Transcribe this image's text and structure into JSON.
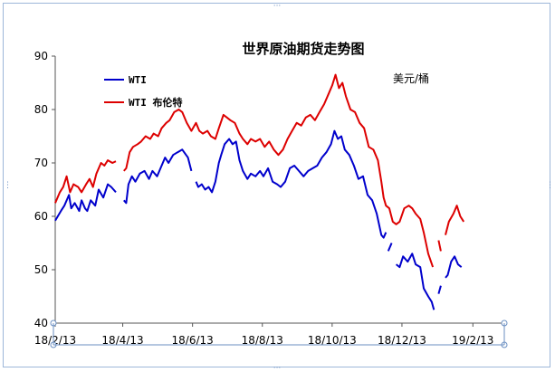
{
  "chart_data": {
    "type": "line",
    "title": "世界原油期货走势图",
    "unit_label": "美元/桶",
    "ylim": [
      40,
      90
    ],
    "y_ticks": [
      "40",
      "50",
      "60",
      "70",
      "80",
      "90"
    ],
    "x_range": [
      "2018-02-01",
      "2019-02-15"
    ],
    "x_ticks": [
      {
        "date": "2018-02-01",
        "label": "18/2/13"
      },
      {
        "date": "2018-04-01",
        "label": "18/4/13"
      },
      {
        "date": "2018-06-01",
        "label": "18/6/13"
      },
      {
        "date": "2018-08-01",
        "label": "18/8/13"
      },
      {
        "date": "2018-10-01",
        "label": "18/10/13"
      },
      {
        "date": "2018-12-01",
        "label": "18/12/13"
      },
      {
        "date": "2019-02-01",
        "label": "19/2/13"
      }
    ],
    "legend_position": "top-left",
    "grid": false,
    "series": [
      {
        "name": "WTI",
        "color": "#0000cc",
        "segments": [
          [
            [
              "2018-02-01",
              59.2
            ],
            [
              "2018-02-06",
              61.0
            ],
            [
              "2018-02-09",
              62.0
            ],
            [
              "2018-02-13",
              64.0
            ],
            [
              "2018-02-15",
              61.5
            ],
            [
              "2018-02-18",
              62.5
            ],
            [
              "2018-02-22",
              61.0
            ],
            [
              "2018-02-24",
              63.0
            ],
            [
              "2018-02-27",
              61.5
            ],
            [
              "2018-03-01",
              61.0
            ],
            [
              "2018-03-04",
              63.0
            ],
            [
              "2018-03-08",
              62.0
            ],
            [
              "2018-03-11",
              65.0
            ],
            [
              "2018-03-15",
              63.5
            ],
            [
              "2018-03-19",
              66.0
            ],
            [
              "2018-03-22",
              65.5
            ],
            [
              "2018-03-26",
              64.5
            ]
          ],
          [
            [
              "2018-04-02",
              63.0
            ],
            [
              "2018-04-04",
              62.5
            ],
            [
              "2018-04-06",
              66.0
            ],
            [
              "2018-04-09",
              67.5
            ],
            [
              "2018-04-12",
              66.5
            ],
            [
              "2018-04-16",
              68.0
            ],
            [
              "2018-04-20",
              68.5
            ],
            [
              "2018-04-24",
              67.0
            ],
            [
              "2018-04-27",
              68.5
            ],
            [
              "2018-05-01",
              67.5
            ],
            [
              "2018-05-04",
              69.0
            ],
            [
              "2018-05-08",
              71.0
            ],
            [
              "2018-05-11",
              70.0
            ],
            [
              "2018-05-15",
              71.5
            ],
            [
              "2018-05-19",
              72.0
            ],
            [
              "2018-05-23",
              72.5
            ],
            [
              "2018-05-28",
              71.0
            ],
            [
              "2018-05-31",
              68.5
            ]
          ],
          [
            [
              "2018-06-04",
              66.5
            ],
            [
              "2018-06-06",
              65.5
            ],
            [
              "2018-06-09",
              66.0
            ],
            [
              "2018-06-12",
              65.0
            ],
            [
              "2018-06-15",
              65.5
            ],
            [
              "2018-06-18",
              64.5
            ],
            [
              "2018-06-21",
              66.5
            ],
            [
              "2018-06-24",
              70.0
            ],
            [
              "2018-06-26",
              71.5
            ],
            [
              "2018-06-29",
              73.5
            ],
            [
              "2018-07-03",
              74.5
            ],
            [
              "2018-07-06",
              73.5
            ],
            [
              "2018-07-09",
              74.0
            ],
            [
              "2018-07-12",
              70.5
            ],
            [
              "2018-07-15",
              68.5
            ],
            [
              "2018-07-19",
              67.0
            ],
            [
              "2018-07-22",
              68.0
            ],
            [
              "2018-07-26",
              67.5
            ],
            [
              "2018-07-30",
              68.5
            ],
            [
              "2018-08-02",
              67.5
            ],
            [
              "2018-08-06",
              69.0
            ],
            [
              "2018-08-10",
              66.5
            ],
            [
              "2018-08-14",
              66.0
            ],
            [
              "2018-08-17",
              65.5
            ],
            [
              "2018-08-21",
              66.5
            ],
            [
              "2018-08-25",
              69.0
            ],
            [
              "2018-08-29",
              69.5
            ],
            [
              "2018-09-02",
              68.5
            ],
            [
              "2018-09-06",
              67.5
            ],
            [
              "2018-09-10",
              68.5
            ],
            [
              "2018-09-14",
              69.0
            ],
            [
              "2018-09-18",
              69.5
            ],
            [
              "2018-09-22",
              71.0
            ],
            [
              "2018-09-26",
              72.0
            ],
            [
              "2018-09-30",
              73.5
            ],
            [
              "2018-10-03",
              76.0
            ],
            [
              "2018-10-06",
              74.5
            ],
            [
              "2018-10-09",
              75.0
            ],
            [
              "2018-10-12",
              72.5
            ],
            [
              "2018-10-16",
              71.5
            ],
            [
              "2018-10-20",
              69.5
            ],
            [
              "2018-10-24",
              67.0
            ],
            [
              "2018-10-28",
              67.5
            ],
            [
              "2018-11-01",
              64.0
            ],
            [
              "2018-11-05",
              63.0
            ],
            [
              "2018-11-09",
              60.5
            ],
            [
              "2018-11-13",
              56.5
            ],
            [
              "2018-11-15",
              56.0
            ],
            [
              "2018-11-17",
              57.0
            ]
          ],
          [
            [
              "2018-11-19",
              53.5
            ],
            [
              "2018-11-22",
              55.0
            ]
          ],
          [
            [
              "2018-11-26",
              51.0
            ],
            [
              "2018-11-29",
              50.5
            ],
            [
              "2018-12-02",
              52.5
            ],
            [
              "2018-12-06",
              51.5
            ],
            [
              "2018-12-10",
              53.0
            ],
            [
              "2018-12-13",
              51.0
            ],
            [
              "2018-12-17",
              50.5
            ],
            [
              "2018-12-20",
              46.5
            ],
            [
              "2018-12-24",
              45.0
            ],
            [
              "2018-12-27",
              44.0
            ],
            [
              "2018-12-29",
              42.5
            ]
          ],
          [
            [
              "2019-01-02",
              45.5
            ],
            [
              "2019-01-04",
              47.0
            ]
          ],
          [
            [
              "2019-01-08",
              48.5
            ],
            [
              "2019-01-10",
              49.0
            ],
            [
              "2019-01-13",
              51.5
            ],
            [
              "2019-01-16",
              52.5
            ],
            [
              "2019-01-19",
              51.0
            ],
            [
              "2019-01-22",
              50.5
            ]
          ]
        ]
      },
      {
        "name": "WTI 布伦特",
        "color": "#dd0000",
        "segments": [
          [
            [
              "2018-02-01",
              62.5
            ],
            [
              "2018-02-05",
              64.5
            ],
            [
              "2018-02-08",
              65.5
            ],
            [
              "2018-02-11",
              67.5
            ],
            [
              "2018-02-14",
              64.5
            ],
            [
              "2018-02-17",
              66.0
            ],
            [
              "2018-02-21",
              65.5
            ],
            [
              "2018-02-24",
              64.5
            ],
            [
              "2018-02-28",
              66.0
            ],
            [
              "2018-03-03",
              67.0
            ],
            [
              "2018-03-06",
              65.5
            ],
            [
              "2018-03-09",
              68.0
            ],
            [
              "2018-03-13",
              70.0
            ],
            [
              "2018-03-16",
              69.5
            ],
            [
              "2018-03-19",
              70.5
            ],
            [
              "2018-03-23",
              70.0
            ],
            [
              "2018-03-26",
              70.3
            ]
          ],
          [
            [
              "2018-04-02",
              68.5
            ],
            [
              "2018-04-04",
              69.0
            ],
            [
              "2018-04-07",
              72.0
            ],
            [
              "2018-04-10",
              73.0
            ],
            [
              "2018-04-14",
              73.5
            ],
            [
              "2018-04-17",
              74.0
            ],
            [
              "2018-04-21",
              75.0
            ],
            [
              "2018-04-25",
              74.5
            ],
            [
              "2018-04-28",
              75.5
            ],
            [
              "2018-05-02",
              75.0
            ],
            [
              "2018-05-05",
              76.5
            ],
            [
              "2018-05-09",
              77.5
            ],
            [
              "2018-05-12",
              78.0
            ],
            [
              "2018-05-16",
              79.5
            ],
            [
              "2018-05-20",
              80.0
            ],
            [
              "2018-05-23",
              79.5
            ],
            [
              "2018-05-27",
              77.5
            ],
            [
              "2018-05-31",
              76.0
            ],
            [
              "2018-06-04",
              77.5
            ],
            [
              "2018-06-07",
              76.0
            ],
            [
              "2018-06-10",
              75.5
            ],
            [
              "2018-06-14",
              76.0
            ],
            [
              "2018-06-17",
              75.0
            ],
            [
              "2018-06-21",
              74.5
            ],
            [
              "2018-06-24",
              76.5
            ],
            [
              "2018-06-28",
              79.0
            ],
            [
              "2018-07-01",
              78.5
            ],
            [
              "2018-07-04",
              78.0
            ],
            [
              "2018-07-08",
              77.5
            ],
            [
              "2018-07-12",
              75.5
            ],
            [
              "2018-07-15",
              74.5
            ],
            [
              "2018-07-19",
              73.5
            ],
            [
              "2018-07-22",
              74.5
            ],
            [
              "2018-07-26",
              74.0
            ],
            [
              "2018-07-30",
              74.5
            ],
            [
              "2018-08-03",
              73.0
            ],
            [
              "2018-08-07",
              74.0
            ],
            [
              "2018-08-11",
              72.5
            ],
            [
              "2018-08-15",
              71.5
            ],
            [
              "2018-08-19",
              72.5
            ],
            [
              "2018-08-23",
              74.5
            ],
            [
              "2018-08-27",
              76.0
            ],
            [
              "2018-08-31",
              77.5
            ],
            [
              "2018-09-04",
              77.0
            ],
            [
              "2018-09-08",
              78.5
            ],
            [
              "2018-09-12",
              79.0
            ],
            [
              "2018-09-16",
              78.0
            ],
            [
              "2018-09-20",
              79.5
            ],
            [
              "2018-09-24",
              81.0
            ],
            [
              "2018-09-28",
              83.0
            ],
            [
              "2018-10-01",
              84.5
            ],
            [
              "2018-10-04",
              86.5
            ],
            [
              "2018-10-07",
              84.0
            ],
            [
              "2018-10-10",
              85.0
            ],
            [
              "2018-10-13",
              82.5
            ],
            [
              "2018-10-17",
              80.0
            ],
            [
              "2018-10-21",
              79.5
            ],
            [
              "2018-10-25",
              77.5
            ],
            [
              "2018-10-29",
              76.5
            ],
            [
              "2018-11-02",
              73.0
            ],
            [
              "2018-11-06",
              72.5
            ],
            [
              "2018-11-10",
              70.5
            ],
            [
              "2018-11-13",
              66.5
            ],
            [
              "2018-11-15",
              63.5
            ],
            [
              "2018-11-17",
              62.0
            ],
            [
              "2018-11-20",
              61.5
            ],
            [
              "2018-11-23",
              59.0
            ],
            [
              "2018-11-26",
              58.5
            ],
            [
              "2018-11-29",
              59.0
            ],
            [
              "2018-12-03",
              61.5
            ],
            [
              "2018-12-07",
              62.0
            ],
            [
              "2018-12-10",
              61.5
            ],
            [
              "2018-12-13",
              60.5
            ],
            [
              "2018-12-17",
              59.5
            ],
            [
              "2018-12-20",
              57.0
            ],
            [
              "2018-12-24",
              53.0
            ],
            [
              "2018-12-28",
              50.5
            ]
          ],
          [
            [
              "2019-01-02",
              55.5
            ],
            [
              "2019-01-04",
              53.5
            ]
          ],
          [
            [
              "2019-01-08",
              56.5
            ],
            [
              "2019-01-11",
              59.0
            ],
            [
              "2019-01-15",
              60.5
            ],
            [
              "2019-01-18",
              62.0
            ],
            [
              "2019-01-21",
              60.0
            ],
            [
              "2019-01-24",
              59.0
            ]
          ]
        ]
      }
    ]
  }
}
